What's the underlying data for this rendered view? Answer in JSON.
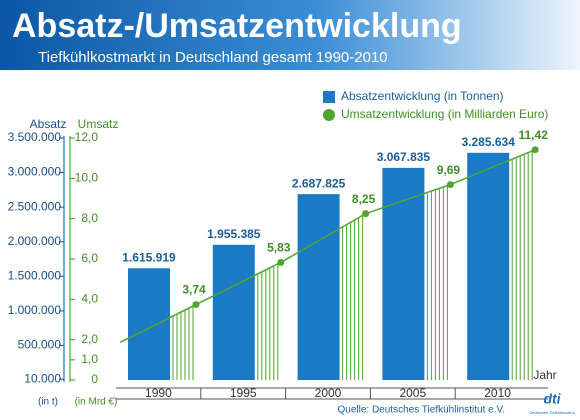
{
  "chart_data": {
    "type": "combo",
    "title": "Absatz-/Umsatzentwicklung",
    "subtitle": "Tiefkühlkostmarkt in Deutschland gesamt 1990-2010",
    "y_title": "Absatz",
    "y2_title": "Umsatz",
    "y_unit": "(in t)",
    "y2_unit": "(in Mrd €)",
    "x_title": "Jahr",
    "source": "Quelle: Deutsches Tiefkühlinstitut e.V.",
    "logo": "dti",
    "logo_text": "Deutsches Tiefkühlinstitut",
    "categories": [
      "1990",
      "1995",
      "2000",
      "2005",
      "2010"
    ],
    "series": [
      {
        "name": "Absatzentwicklung (in Tonnen)",
        "type": "bar",
        "color": "#1a7ac6",
        "values": [
          1615919,
          1955385,
          2687825,
          3067835,
          3285634
        ],
        "value_labels": [
          "1.615.919",
          "1.955.385",
          "2.687.825",
          "3.067.835",
          "3.285.634"
        ]
      },
      {
        "name": "Umsatzentwicklung (in Milliarden Euro)",
        "type": "line",
        "color": "#4fa62e",
        "axis": "y2",
        "values": [
          3.74,
          5.83,
          8.25,
          9.69,
          11.42
        ],
        "value_labels": [
          "3,74",
          "5,83",
          "8,25",
          "9,69",
          "11,42"
        ]
      }
    ],
    "ylim": [
      0,
      3500000
    ],
    "yticks": [
      {
        "value": 3500000,
        "label": "3.500.000"
      },
      {
        "value": 3000000,
        "label": "3.000.000"
      },
      {
        "value": 2500000,
        "label": "2.500.000"
      },
      {
        "value": 2000000,
        "label": "2.000.000"
      },
      {
        "value": 1500000,
        "label": "1.500.000"
      },
      {
        "value": 1000000,
        "label": "1.000.000"
      },
      {
        "value": 500000,
        "label": "500.000"
      },
      {
        "value": 10000,
        "label": "10.000"
      }
    ],
    "y2lim": [
      0,
      12
    ],
    "y2ticks": [
      {
        "value": 12,
        "label": "12,0"
      },
      {
        "value": 10,
        "label": "10,0"
      },
      {
        "value": 8,
        "label": "8,0"
      },
      {
        "value": 6,
        "label": "6,0"
      },
      {
        "value": 4,
        "label": "4,0"
      },
      {
        "value": 2,
        "label": "2,0"
      },
      {
        "value": 1,
        "label": "1,0"
      },
      0
    ],
    "grid": false
  }
}
